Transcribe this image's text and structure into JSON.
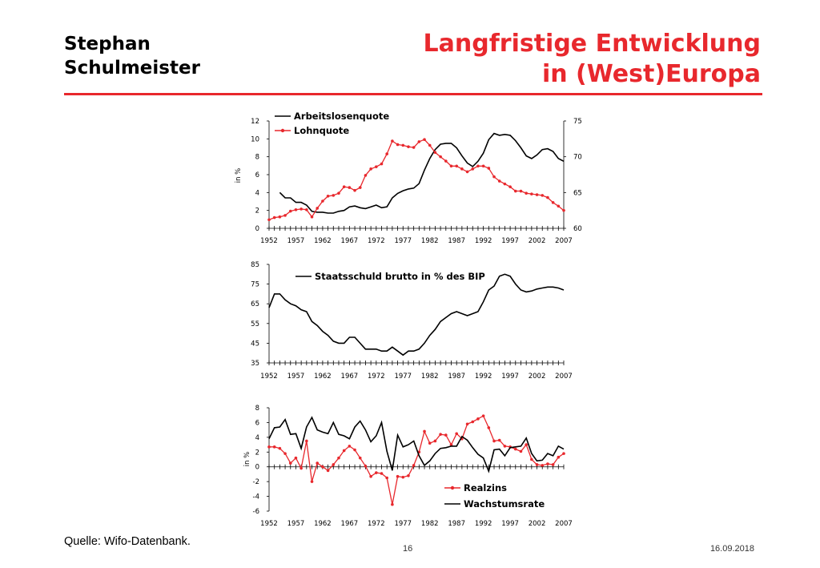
{
  "header": {
    "author_line1": "Stephan",
    "author_line2": "Schulmeister",
    "title_line1": "Langfristige Entwicklung",
    "title_line2": "in (West)Europa",
    "accent_color": "#e8282d"
  },
  "footer": {
    "source": "Quelle: Wifo-Datenbank.",
    "page_number": "16",
    "date": "16.09.2018"
  },
  "chart_data": [
    {
      "type": "line",
      "x": [
        1952,
        1953,
        1954,
        1955,
        1956,
        1957,
        1958,
        1959,
        1960,
        1961,
        1962,
        1963,
        1964,
        1965,
        1966,
        1967,
        1968,
        1969,
        1970,
        1971,
        1972,
        1973,
        1974,
        1975,
        1976,
        1977,
        1978,
        1979,
        1980,
        1981,
        1982,
        1983,
        1984,
        1985,
        1986,
        1987,
        1988,
        1989,
        1990,
        1991,
        1992,
        1993,
        1994,
        1995,
        1996,
        1997,
        1998,
        1999,
        2000,
        2001,
        2002,
        2003,
        2004,
        2005,
        2006,
        2007
      ],
      "x_ticks": [
        "1952",
        "1957",
        "1962",
        "1967",
        "1972",
        "1977",
        "1982",
        "1987",
        "1992",
        "1997",
        "2002",
        "2007"
      ],
      "ylabel": "in %",
      "ylim_left": [
        0,
        12
      ],
      "yticks_left": [
        "0",
        "2",
        "4",
        "6",
        "8",
        "10",
        "12"
      ],
      "ylim_right": [
        60,
        75
      ],
      "yticks_right": [
        "60",
        "65",
        "70",
        "75"
      ],
      "legend_position": "top-left",
      "series": [
        {
          "name": "Arbeitslosenquote",
          "axis": "left",
          "color": "#000000",
          "marker": false,
          "values": [
            null,
            null,
            4.0,
            3.4,
            3.4,
            2.9,
            2.9,
            2.6,
            1.9,
            1.8,
            1.8,
            1.7,
            1.7,
            1.9,
            2.0,
            2.4,
            2.5,
            2.3,
            2.2,
            2.4,
            2.6,
            2.3,
            2.4,
            3.4,
            3.9,
            4.2,
            4.4,
            4.5,
            5.0,
            6.5,
            7.8,
            8.8,
            9.4,
            9.5,
            9.5,
            9.0,
            8.1,
            7.3,
            6.9,
            7.5,
            8.4,
            9.9,
            10.6,
            10.4,
            10.5,
            10.4,
            9.8,
            9.0,
            8.1,
            7.8,
            8.2,
            8.8,
            8.9,
            8.6,
            7.8,
            7.5
          ]
        },
        {
          "name": "Lohnquote",
          "axis": "right",
          "color": "#e8282d",
          "marker": true,
          "values": [
            61.2,
            61.5,
            61.6,
            61.8,
            62.4,
            62.6,
            62.7,
            62.6,
            61.6,
            62.8,
            63.8,
            64.5,
            64.6,
            64.9,
            65.8,
            65.7,
            65.3,
            65.7,
            67.4,
            68.3,
            68.6,
            69.0,
            70.4,
            72.2,
            71.7,
            71.6,
            71.4,
            71.3,
            72.1,
            72.4,
            71.6,
            70.6,
            70.0,
            69.4,
            68.7,
            68.7,
            68.3,
            67.9,
            68.3,
            68.7,
            68.7,
            68.4,
            67.2,
            66.6,
            66.2,
            65.8,
            65.2,
            65.2,
            64.9,
            64.8,
            64.7,
            64.6,
            64.3,
            63.6,
            63.1,
            62.5
          ]
        }
      ]
    },
    {
      "type": "line",
      "x": [
        1952,
        1953,
        1954,
        1955,
        1956,
        1957,
        1958,
        1959,
        1960,
        1961,
        1962,
        1963,
        1964,
        1965,
        1966,
        1967,
        1968,
        1969,
        1970,
        1971,
        1972,
        1973,
        1974,
        1975,
        1976,
        1977,
        1978,
        1979,
        1980,
        1981,
        1982,
        1983,
        1984,
        1985,
        1986,
        1987,
        1988,
        1989,
        1990,
        1991,
        1992,
        1993,
        1994,
        1995,
        1996,
        1997,
        1998,
        1999,
        2000,
        2001,
        2002,
        2003,
        2004,
        2005,
        2006,
        2007
      ],
      "x_ticks": [
        "1952",
        "1957",
        "1962",
        "1967",
        "1972",
        "1977",
        "1982",
        "1987",
        "1992",
        "1997",
        "2002",
        "2007"
      ],
      "ylim": [
        35,
        85
      ],
      "yticks": [
        "35",
        "45",
        "55",
        "65",
        "75",
        "85"
      ],
      "legend_position": "top-center",
      "series": [
        {
          "name": "Staatsschuld brutto in % des BIP",
          "color": "#000000",
          "marker": false,
          "values": [
            63,
            70,
            70,
            67,
            65,
            64,
            62,
            61,
            56,
            54,
            51,
            49,
            46,
            45,
            45,
            48,
            48,
            45,
            42,
            42,
            42,
            41,
            41,
            43,
            41,
            39,
            41,
            41,
            42,
            45,
            49,
            52,
            56,
            58,
            60,
            61,
            60,
            59,
            60,
            61,
            66,
            72,
            74,
            79,
            80,
            79,
            75,
            72,
            71,
            71.5,
            72.5,
            73,
            73.5,
            73.5,
            73,
            72
          ]
        }
      ]
    },
    {
      "type": "line",
      "x": [
        1952,
        1953,
        1954,
        1955,
        1956,
        1957,
        1958,
        1959,
        1960,
        1961,
        1962,
        1963,
        1964,
        1965,
        1966,
        1967,
        1968,
        1969,
        1970,
        1971,
        1972,
        1973,
        1974,
        1975,
        1976,
        1977,
        1978,
        1979,
        1980,
        1981,
        1982,
        1983,
        1984,
        1985,
        1986,
        1987,
        1988,
        1989,
        1990,
        1991,
        1992,
        1993,
        1994,
        1995,
        1996,
        1997,
        1998,
        1999,
        2000,
        2001,
        2002,
        2003,
        2004,
        2005,
        2006,
        2007
      ],
      "x_ticks": [
        "1952",
        "1957",
        "1962",
        "1967",
        "1972",
        "1977",
        "1982",
        "1987",
        "1992",
        "1997",
        "2002",
        "2007"
      ],
      "ylabel": "in %",
      "ylim": [
        -6,
        8
      ],
      "yticks": [
        "-6",
        "-4",
        "-2",
        "0",
        "2",
        "4",
        "6",
        "8"
      ],
      "legend_position": "bottom-right",
      "series": [
        {
          "name": "Realzins",
          "color": "#e8282d",
          "marker": true,
          "values": [
            2.7,
            2.7,
            2.5,
            1.8,
            0.5,
            1.2,
            -0.2,
            3.5,
            -2.0,
            0.5,
            0,
            -0.5,
            0.3,
            1.2,
            2.2,
            2.8,
            2.3,
            1.2,
            0.1,
            -1.3,
            -0.8,
            -0.9,
            -1.5,
            -5.1,
            -1.3,
            -1.4,
            -1.2,
            0.2,
            2.0,
            4.8,
            3.2,
            3.5,
            4.4,
            4.3,
            3.0,
            4.5,
            3.8,
            5.8,
            6.1,
            6.5,
            6.9,
            5.3,
            3.5,
            3.6,
            2.8,
            2.7,
            2.4,
            2.1,
            3.0,
            1.0,
            0.3,
            0.2,
            0.4,
            0.3,
            1.3,
            1.8
          ]
        },
        {
          "name": "Wachstumsrate",
          "color": "#000000",
          "marker": false,
          "values": [
            3.8,
            5.3,
            5.4,
            6.4,
            4.4,
            4.5,
            2.5,
            5.4,
            6.7,
            5.0,
            4.7,
            4.5,
            6.0,
            4.4,
            4.2,
            3.8,
            5.4,
            6.2,
            5.0,
            3.4,
            4.2,
            6.0,
            2.1,
            -0.5,
            4.3,
            2.7,
            3.0,
            3.5,
            1.5,
            0.2,
            0.8,
            1.8,
            2.5,
            2.6,
            2.8,
            2.8,
            4.1,
            3.6,
            2.6,
            1.7,
            1.2,
            -0.6,
            2.3,
            2.4,
            1.5,
            2.6,
            2.7,
            2.8,
            3.9,
            1.8,
            0.8,
            0.9,
            1.8,
            1.5,
            2.8,
            2.4
          ]
        }
      ]
    }
  ]
}
